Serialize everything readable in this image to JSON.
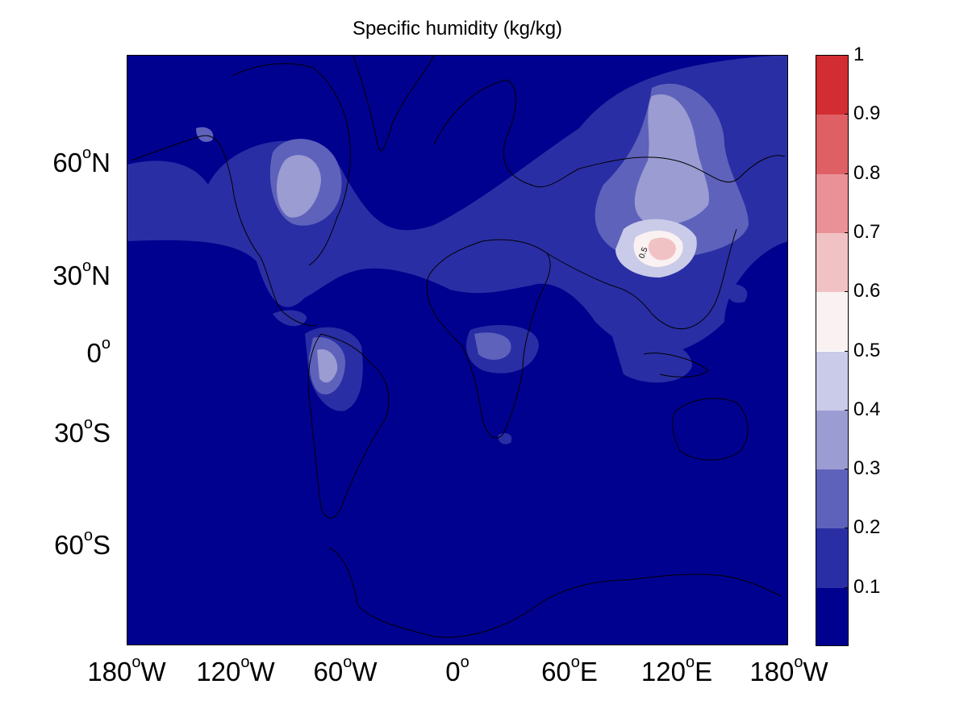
{
  "title": "Specific humidity (kg/kg)",
  "map": {
    "projection": "mercator",
    "lon_range": [
      -180,
      180
    ],
    "lat_range": [
      -80,
      80
    ],
    "land_outlines": true,
    "background_color": "#01018f"
  },
  "y_ticks": [
    {
      "lat": 60,
      "deg": "60",
      "dir": "N"
    },
    {
      "lat": 30,
      "deg": "30",
      "dir": "N"
    },
    {
      "lat": 0,
      "deg": "0",
      "dir": ""
    },
    {
      "lat": -30,
      "deg": "30",
      "dir": "S"
    },
    {
      "lat": -60,
      "deg": "60",
      "dir": "S"
    }
  ],
  "x_ticks": [
    {
      "lon": -180,
      "deg": "180",
      "dir": "W"
    },
    {
      "lon": -120,
      "deg": "120",
      "dir": "W"
    },
    {
      "lon": -60,
      "deg": "60",
      "dir": "W"
    },
    {
      "lon": 0,
      "deg": "0",
      "dir": ""
    },
    {
      "lon": 60,
      "deg": "60",
      "dir": "E"
    },
    {
      "lon": 120,
      "deg": "120",
      "dir": "E"
    },
    {
      "lon": 180,
      "deg": "180",
      "dir": "W"
    }
  ],
  "colorbar": {
    "min": 0,
    "max": 1,
    "levels": [
      0,
      0.1,
      0.2,
      0.3,
      0.4,
      0.5,
      0.6,
      0.7,
      0.8,
      0.9,
      1.0
    ],
    "colors": [
      "#01018f",
      "#2a2ea4",
      "#5f62bb",
      "#9a9cd2",
      "#cacbe8",
      "#faf2f2",
      "#f1c2c4",
      "#e99196",
      "#de6065",
      "#d12d32"
    ],
    "tick_labels": [
      "0.1",
      "0.2",
      "0.3",
      "0.4",
      "0.5",
      "0.6",
      "0.7",
      "0.8",
      "0.9",
      "1"
    ]
  },
  "contour_label": "0.5"
}
